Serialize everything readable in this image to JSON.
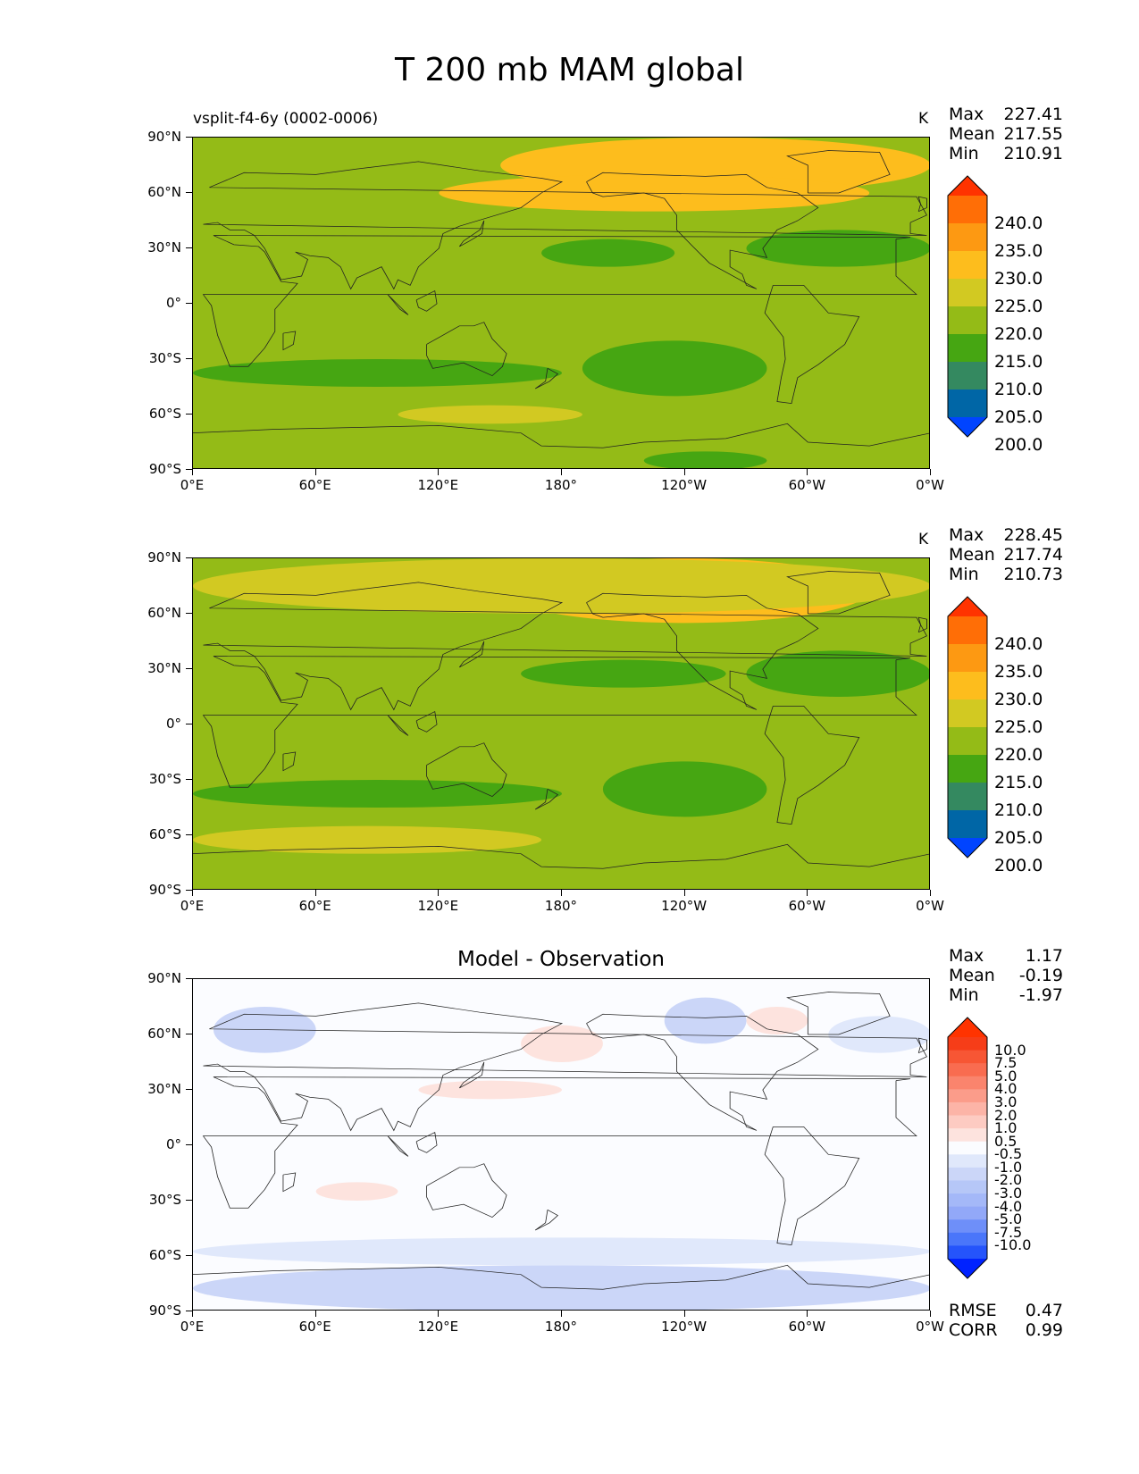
{
  "figure_title": "T 200 mb MAM global",
  "colors": {
    "abs_levels": [
      "#0044ff",
      "#0066a6",
      "#348960",
      "#46a612",
      "#94bb17",
      "#d2c922",
      "#fdbd1d",
      "#fd9912",
      "#ff6e06",
      "#ff3300"
    ],
    "diff_levels": [
      "#0022ff",
      "#2554fb",
      "#4a76fa",
      "#6e8ff9",
      "#92a8f8",
      "#a4b8f8",
      "#b6c7f7",
      "#cbd6f8",
      "#e0e8fb",
      "#fbfcff",
      "#fde3de",
      "#fdcbc2",
      "#fcb4a7",
      "#fb9c8a",
      "#fa846d",
      "#f96c50",
      "#f75634",
      "#f63d18",
      "#ff3300"
    ]
  },
  "axes": {
    "yticks": [
      "90°N",
      "60°N",
      "30°N",
      "0°",
      "30°S",
      "60°S",
      "90°S"
    ],
    "xticks": [
      "0°E",
      "60°E",
      "120°E",
      "180°",
      "120°W",
      "60°W",
      "0°W"
    ]
  },
  "chart_data": [
    {
      "type": "heatmap",
      "subtitle": "vsplit-f4-6y (0002-0006)",
      "units": "K",
      "stats": {
        "max": "227.41",
        "mean": "217.55",
        "min": "210.91"
      },
      "colorbar_labels": [
        "240.0",
        "235.0",
        "230.0",
        "225.0",
        "220.0",
        "215.0",
        "210.0",
        "205.0",
        "200.0"
      ],
      "levels": [
        200,
        205,
        210,
        215,
        220,
        225,
        230,
        235,
        240
      ],
      "extend": "both",
      "xlim": [
        0,
        360
      ],
      "ylim": [
        -90,
        90
      ],
      "regions": [
        {
          "level": 225,
          "lon": [
            150,
            360
          ],
          "lat": [
            60,
            90
          ]
        },
        {
          "level": 225,
          "lon": [
            120,
            330
          ],
          "lat": [
            50,
            70
          ]
        },
        {
          "level": 210,
          "lon": [
            170,
            235
          ],
          "lat": [
            20,
            35
          ]
        },
        {
          "level": 210,
          "lon": [
            270,
            360
          ],
          "lat": [
            20,
            40
          ]
        },
        {
          "level": 210,
          "lon": [
            0,
            180
          ],
          "lat": [
            -45,
            -30
          ]
        },
        {
          "level": 210,
          "lon": [
            190,
            280
          ],
          "lat": [
            -50,
            -20
          ]
        },
        {
          "level": 220,
          "lon": [
            100,
            190
          ],
          "lat": [
            -65,
            -55
          ]
        },
        {
          "level": 210,
          "lon": [
            220,
            280
          ],
          "lat": [
            -90,
            -80
          ]
        }
      ]
    },
    {
      "type": "heatmap",
      "subtitle": "",
      "units": "K",
      "stats": {
        "max": "228.45",
        "mean": "217.74",
        "min": "210.73"
      },
      "colorbar_labels": [
        "240.0",
        "235.0",
        "230.0",
        "225.0",
        "220.0",
        "215.0",
        "210.0",
        "205.0",
        "200.0"
      ],
      "levels": [
        200,
        205,
        210,
        215,
        220,
        225,
        230,
        235,
        240
      ],
      "extend": "both",
      "xlim": [
        0,
        360
      ],
      "ylim": [
        -90,
        90
      ],
      "regions": [
        {
          "level": 225,
          "lon": [
            150,
            330
          ],
          "lat": [
            55,
            90
          ]
        },
        {
          "level": 220,
          "lon": [
            0,
            360
          ],
          "lat": [
            60,
            90
          ]
        },
        {
          "level": 210,
          "lon": [
            160,
            260
          ],
          "lat": [
            20,
            35
          ]
        },
        {
          "level": 210,
          "lon": [
            270,
            360
          ],
          "lat": [
            15,
            40
          ]
        },
        {
          "level": 210,
          "lon": [
            0,
            180
          ],
          "lat": [
            -45,
            -30
          ]
        },
        {
          "level": 210,
          "lon": [
            200,
            280
          ],
          "lat": [
            -50,
            -20
          ]
        },
        {
          "level": 220,
          "lon": [
            0,
            170
          ],
          "lat": [
            -70,
            -55
          ]
        }
      ]
    },
    {
      "type": "heatmap",
      "title": "Model - Observation",
      "units": "",
      "stats": {
        "max": "1.17",
        "mean": "-0.19",
        "min": "-1.97"
      },
      "colorbar_labels": [
        "10.0",
        "7.5",
        "5.0",
        "4.0",
        "3.0",
        "2.0",
        "1.0",
        "0.5",
        "-0.5",
        "-1.0",
        "-2.0",
        "-3.0",
        "-4.0",
        "-5.0",
        "-7.5",
        "-10.0"
      ],
      "levels": [
        -10,
        -7.5,
        -5,
        -4,
        -3,
        -2,
        -1,
        -0.5,
        0.5,
        1,
        2,
        3,
        4,
        5,
        7.5,
        10
      ],
      "extend": "both",
      "rmse": {
        "label": "RMSE",
        "value": "0.47"
      },
      "corr": {
        "label": "CORR",
        "value": "0.99"
      },
      "xlim": [
        0,
        360
      ],
      "ylim": [
        -90,
        90
      ],
      "regions": [
        {
          "level": -1,
          "lon": [
            0,
            360
          ],
          "lat": [
            -90,
            -65
          ]
        },
        {
          "level": -0.5,
          "lon": [
            0,
            360
          ],
          "lat": [
            -65,
            -50
          ]
        },
        {
          "level": -1,
          "lon": [
            10,
            60
          ],
          "lat": [
            50,
            75
          ]
        },
        {
          "level": -1,
          "lon": [
            230,
            270
          ],
          "lat": [
            55,
            80
          ]
        },
        {
          "level": 0.5,
          "lon": [
            110,
            180
          ],
          "lat": [
            25,
            35
          ]
        },
        {
          "level": 0.5,
          "lon": [
            160,
            200
          ],
          "lat": [
            45,
            65
          ]
        },
        {
          "level": -0.5,
          "lon": [
            310,
            360
          ],
          "lat": [
            50,
            70
          ]
        },
        {
          "level": 0.5,
          "lon": [
            270,
            300
          ],
          "lat": [
            60,
            75
          ]
        },
        {
          "level": 0.5,
          "lon": [
            60,
            100
          ],
          "lat": [
            -30,
            -20
          ]
        }
      ]
    }
  ]
}
